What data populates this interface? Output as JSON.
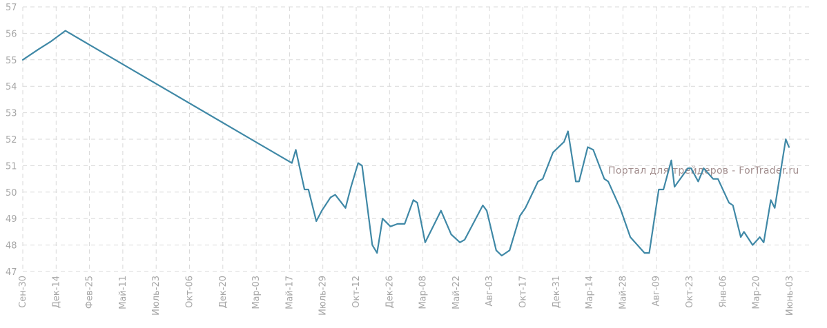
{
  "watermark": "Портал для трейдеров - ForTrader.ru",
  "colors": {
    "line": "#3f88a6",
    "grid": "#d9d9d9",
    "tick": "#a6a6a6",
    "watermark": "#a38f8f"
  },
  "chart_data": {
    "type": "line",
    "title": "",
    "xlabel": "",
    "ylabel": "",
    "ylim": [
      47,
      57
    ],
    "yticks": [
      47,
      48,
      49,
      50,
      51,
      52,
      53,
      54,
      55,
      56,
      57
    ],
    "grid": true,
    "xticks": [
      "Сен-30",
      "Дек-14",
      "Фев-25",
      "Май-11",
      "Июль-23",
      "Окт-06",
      "Дек-20",
      "Мар-03",
      "Май-17",
      "Июль-29",
      "Окт-12",
      "Дек-26",
      "Мар-08",
      "Май-22",
      "Авг-03",
      "Окт-17",
      "Дек-31",
      "Мар-14",
      "Май-28",
      "Авг-09",
      "Окт-23",
      "Янв-06",
      "Мар-20",
      "Июнь-03"
    ],
    "series": [
      {
        "values": [
          55.0,
          55.4,
          55.7,
          56.1,
          51.1,
          51.6,
          50.1,
          50.1,
          48.9,
          49.3,
          49.8,
          49.9,
          49.4,
          50.2,
          51.1,
          51.0,
          48.0,
          47.7,
          49.0,
          48.7,
          48.8,
          48.8,
          49.7,
          49.6,
          48.1,
          48.7,
          49.3,
          48.4,
          48.1,
          48.2,
          49.5,
          49.3,
          47.8,
          47.6,
          47.8,
          49.1,
          49.4,
          50.4,
          50.5,
          51.5,
          51.9,
          52.3,
          50.4,
          50.4,
          51.7,
          51.6,
          50.5,
          50.4,
          49.4,
          48.3,
          47.7,
          47.7,
          50.1,
          50.1,
          51.2,
          50.2,
          50.9,
          50.9,
          50.4,
          50.9,
          50.5,
          50.5,
          49.6,
          49.5,
          48.3,
          48.5,
          48.0,
          48.3,
          48.1,
          49.7,
          49.4,
          52.0,
          51.7
        ]
      }
    ]
  }
}
